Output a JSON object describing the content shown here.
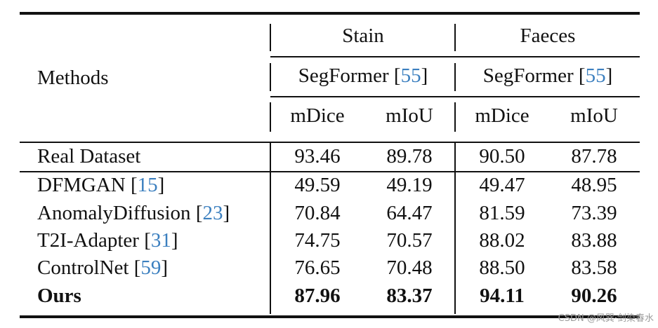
{
  "header": {
    "col_methods": "Methods",
    "group1": "Stain",
    "group2": "Faeces",
    "model1": {
      "name": "SegFormer",
      "open": " [",
      "ref": "55",
      "close": "]"
    },
    "model2": {
      "name": "SegFormer",
      "open": " [",
      "ref": "55",
      "close": "]"
    },
    "metric1": "mDice",
    "metric2": "mIoU",
    "metric3": "mDice",
    "metric4": "mIoU"
  },
  "real": {
    "method": "Real Dataset",
    "values": [
      "93.46",
      "89.78",
      "90.50",
      "87.78"
    ]
  },
  "rows": [
    {
      "method": "DFMGAN",
      "ref": "15",
      "values": [
        "49.59",
        "49.19",
        "49.47",
        "48.95"
      ]
    },
    {
      "method": "AnomalyDiffusion",
      "ref": "23",
      "values": [
        "70.84",
        "64.47",
        "81.59",
        "73.39"
      ]
    },
    {
      "method": "T2I-Adapter",
      "ref": "31",
      "values": [
        "74.75",
        "70.57",
        "88.02",
        "83.88"
      ]
    },
    {
      "method": "ControlNet",
      "ref": "59",
      "values": [
        "76.65",
        "70.48",
        "88.50",
        "83.58"
      ]
    }
  ],
  "ours": {
    "method": "Ours",
    "values": [
      "87.96",
      "83.37",
      "94.11",
      "90.26"
    ]
  },
  "watermark": "CSDN @风巽·剑染春水"
}
